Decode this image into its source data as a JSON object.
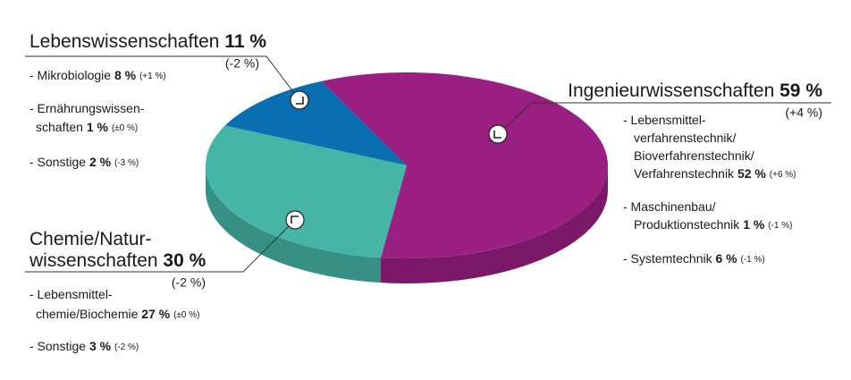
{
  "chart_data": {
    "type": "pie",
    "categories": [
      [
        "Ingenieurwissenschaften"
      ],
      [
        "Chemie/Natur-",
        "wissenschaften"
      ],
      [
        "Lebenswissenschaften"
      ]
    ],
    "values": [
      59,
      30,
      11
    ],
    "value_labels": [
      "59 %",
      "30 %",
      "11 %"
    ],
    "changes": [
      "(+4 %)",
      "(-2 %)",
      "(-2 %)"
    ],
    "colors": [
      "#9b1f82",
      "#45b5a8",
      "#0a6fb0"
    ],
    "side_colors": [
      "#7c1868",
      "#369184",
      "#08588c"
    ],
    "details": [
      [
        {
          "lines": [
            "- Lebensmittel-",
            "verfahrenstechnik/",
            "Bioverfahrenstechnik/",
            "Verfahrenstechnik"
          ],
          "value": 52,
          "value_label": "52 %",
          "change": "(+6 %)"
        },
        {
          "lines": [
            "- Maschinenbau/",
            "Produktionstechnik"
          ],
          "value": 1,
          "value_label": "1 %",
          "change": "(-1 %)"
        },
        {
          "lines": [
            "- Systemtechnik"
          ],
          "value": 6,
          "value_label": "6 %",
          "change": "(-1 %)"
        }
      ],
      [
        {
          "lines": [
            "- Lebensmittel-",
            "chemie/Biochemie"
          ],
          "value": 27,
          "value_label": "27 %",
          "change": "(±0 %)"
        },
        {
          "lines": [
            "- Sonstige"
          ],
          "value": 3,
          "value_label": "3 %",
          "change": "(-2 %)"
        }
      ],
      [
        {
          "lines": [
            "- Mikrobiologie"
          ],
          "value": 8,
          "value_label": "8 %",
          "change": "(+1 %)"
        },
        {
          "lines": [
            "- Ernährungswissen-",
            "schaften"
          ],
          "value": 1,
          "value_label": "1 %",
          "change": "(±0 %)"
        },
        {
          "lines": [
            "- Sonstige"
          ],
          "value": 2,
          "value_label": "2 %",
          "change": "(-3 %)"
        }
      ]
    ]
  }
}
